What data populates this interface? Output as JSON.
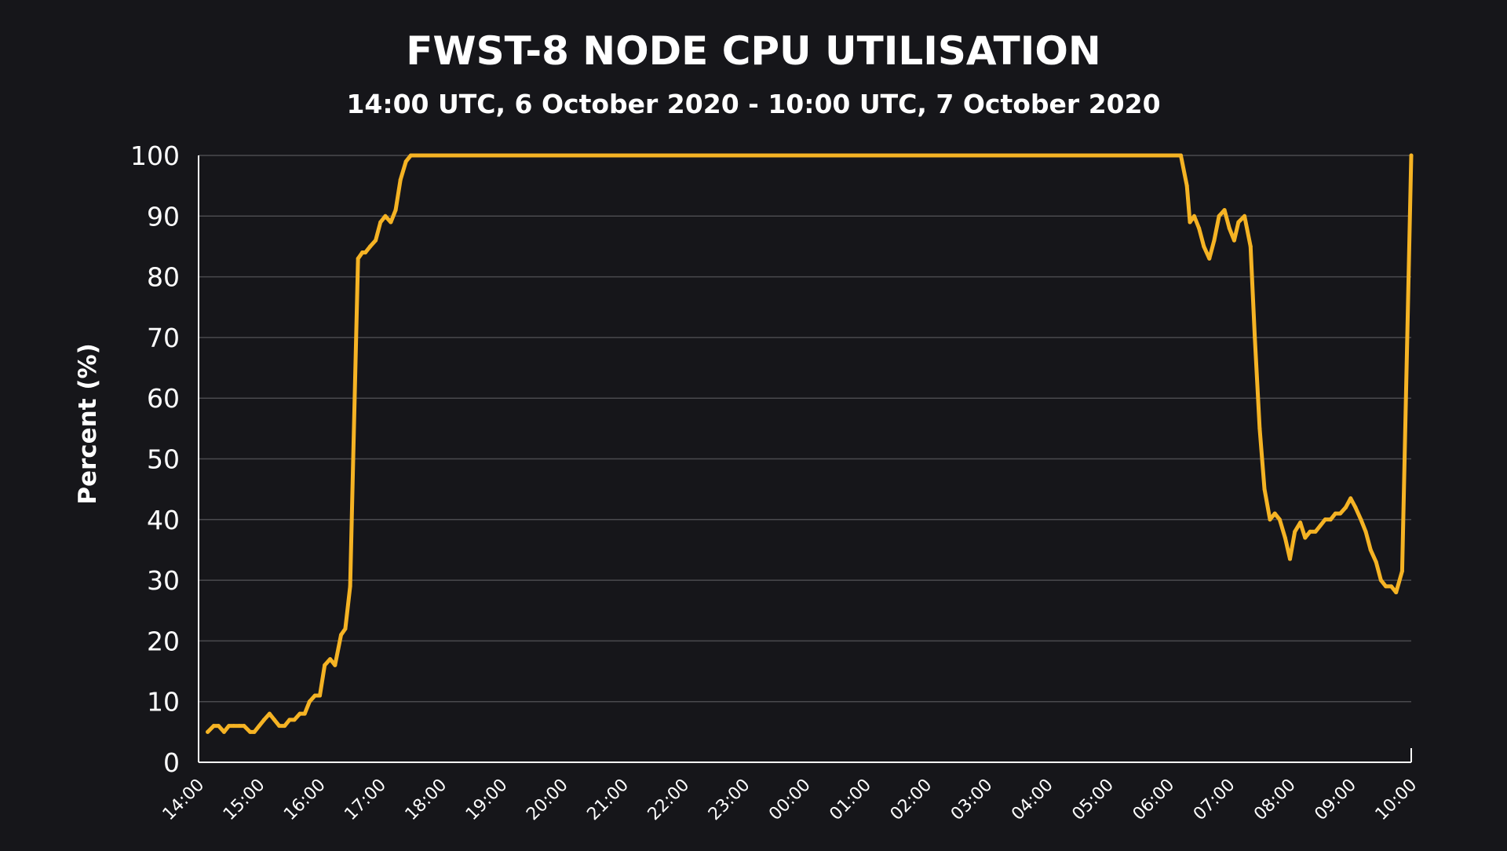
{
  "chart_data": {
    "type": "line",
    "title": "FWST-8 NODE CPU UTILISATION",
    "subtitle": "14:00 UTC, 6 October 2020 - 10:00 UTC, 7 October 2020",
    "xlabel": "",
    "ylabel": "Percent (%)",
    "ylim": [
      0,
      100
    ],
    "yticks": [
      0,
      10,
      20,
      30,
      40,
      50,
      60,
      70,
      80,
      90,
      100
    ],
    "xlim": [
      0,
      20
    ],
    "xtick_labels": [
      "14:00",
      "15:00",
      "16:00",
      "17:00",
      "18:00",
      "19:00",
      "20:00",
      "21:00",
      "22:00",
      "23:00",
      "00:00",
      "01:00",
      "02:00",
      "03:00",
      "04:00",
      "05:00",
      "06:00",
      "07:00",
      "08:00",
      "09:00",
      "10:00"
    ],
    "grid": "horizontal",
    "line_color": "#f5b324",
    "series": [
      {
        "name": "CPU utilisation",
        "x": [
          0.15,
          0.25,
          0.33,
          0.42,
          0.5,
          0.58,
          0.67,
          0.75,
          0.85,
          0.92,
          1.0,
          1.08,
          1.17,
          1.25,
          1.33,
          1.42,
          1.5,
          1.58,
          1.67,
          1.75,
          1.83,
          1.92,
          2.0,
          2.08,
          2.17,
          2.25,
          2.35,
          2.42,
          2.5,
          2.55,
          2.63,
          2.7,
          2.75,
          2.83,
          2.92,
          3.0,
          3.08,
          3.17,
          3.25,
          3.33,
          3.42,
          3.5,
          3.58,
          3.67,
          3.75,
          20.0,
          16.2,
          16.3,
          16.35,
          16.42,
          16.5,
          16.58,
          16.67,
          16.75,
          16.83,
          16.92,
          17.0,
          17.08,
          17.15,
          17.25,
          17.35,
          17.42,
          17.5,
          17.58,
          17.67,
          17.75,
          17.83,
          17.92,
          18.0,
          18.08,
          18.17,
          18.25,
          18.33,
          18.42,
          18.5,
          18.58,
          18.67,
          18.75,
          18.83,
          18.92,
          19.0,
          19.08,
          19.17,
          19.25,
          19.33,
          19.42,
          19.5,
          19.58,
          19.67,
          19.75,
          19.85
        ],
        "values": [
          5,
          6,
          6,
          5,
          6,
          6,
          6,
          6,
          5,
          5,
          6,
          7,
          8,
          7,
          6,
          6,
          7,
          7,
          8,
          8,
          10,
          11,
          11,
          16,
          17,
          16,
          21,
          22,
          29,
          50,
          83,
          84,
          84,
          85,
          86,
          89,
          90,
          89,
          91,
          96,
          99,
          100,
          100,
          100,
          100,
          100,
          100,
          95,
          89,
          90,
          88,
          85,
          83,
          86,
          90,
          91,
          88,
          86,
          89,
          90,
          85,
          70,
          55,
          45,
          40,
          41,
          40,
          37,
          33.5,
          38,
          39.5,
          37,
          38,
          38,
          39,
          40,
          40,
          41,
          41,
          42,
          43.5,
          42,
          40,
          38,
          35,
          33,
          30,
          29,
          29,
          28,
          31.5
        ]
      }
    ]
  }
}
